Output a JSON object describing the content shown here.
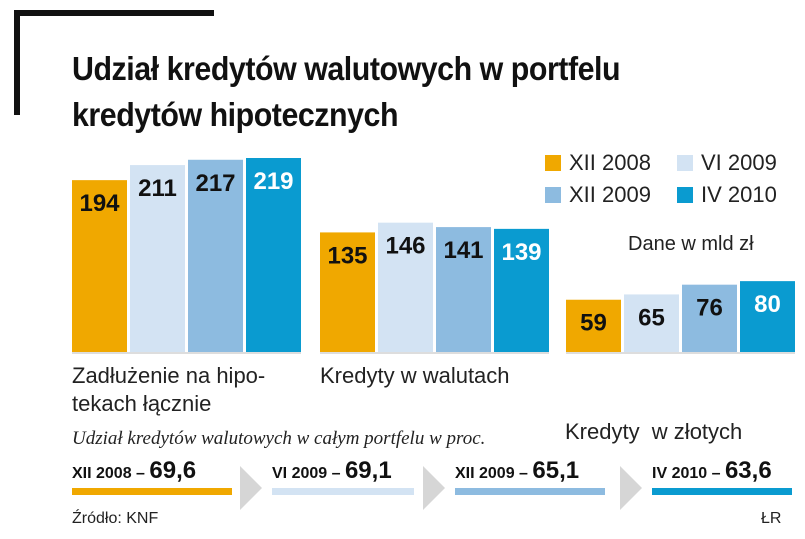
{
  "header": {
    "title_line1": "Udział kredytów walutowych w portfelu",
    "title_line2": "kredytów hipotecznych"
  },
  "unit_note": "Dane w mld zł",
  "colors": {
    "XII 2008": "#f0a800",
    "VI 2009": "#d3e3f3",
    "XII 2009": "#8dbbe0",
    "IV 2010": "#0a9bd0"
  },
  "chart_data": {
    "type": "bar",
    "categories": [
      "Zadłużenie na hipotekach łącznie",
      "Kredyty w walutach",
      "Kredyty  w złotych"
    ],
    "category_label_lines": [
      [
        "Zadłużenie na hipo-",
        "tekach łącznie"
      ],
      [
        "Kredyty w walutach"
      ],
      [
        "Kredyty  w złotych"
      ]
    ],
    "series": [
      {
        "name": "XII 2008",
        "values": [
          194,
          135,
          59
        ]
      },
      {
        "name": "VI 2009",
        "values": [
          211,
          146,
          65
        ]
      },
      {
        "name": "XII 2009",
        "values": [
          217,
          141,
          76
        ]
      },
      {
        "name": "IV 2010",
        "values": [
          219,
          139,
          80
        ]
      }
    ],
    "ylim": [
      0,
      219
    ],
    "legend_position": "top-right",
    "grid": false
  },
  "share": {
    "subtitle": "Udział kredytów walutowych w całym portfelu w proc.",
    "items": [
      {
        "label": "XII 2008 –",
        "value": "69,6",
        "color": "#f0a800"
      },
      {
        "label": "VI 2009 –",
        "value": "69,1",
        "color": "#d3e3f3"
      },
      {
        "label": "XII 2009 –",
        "value": "65,1",
        "color": "#8dbbe0"
      },
      {
        "label": "IV 2010 –",
        "value": "63,6",
        "color": "#0a9bd0"
      }
    ]
  },
  "footer": {
    "source": "Źródło: KNF",
    "author": "ŁR"
  }
}
